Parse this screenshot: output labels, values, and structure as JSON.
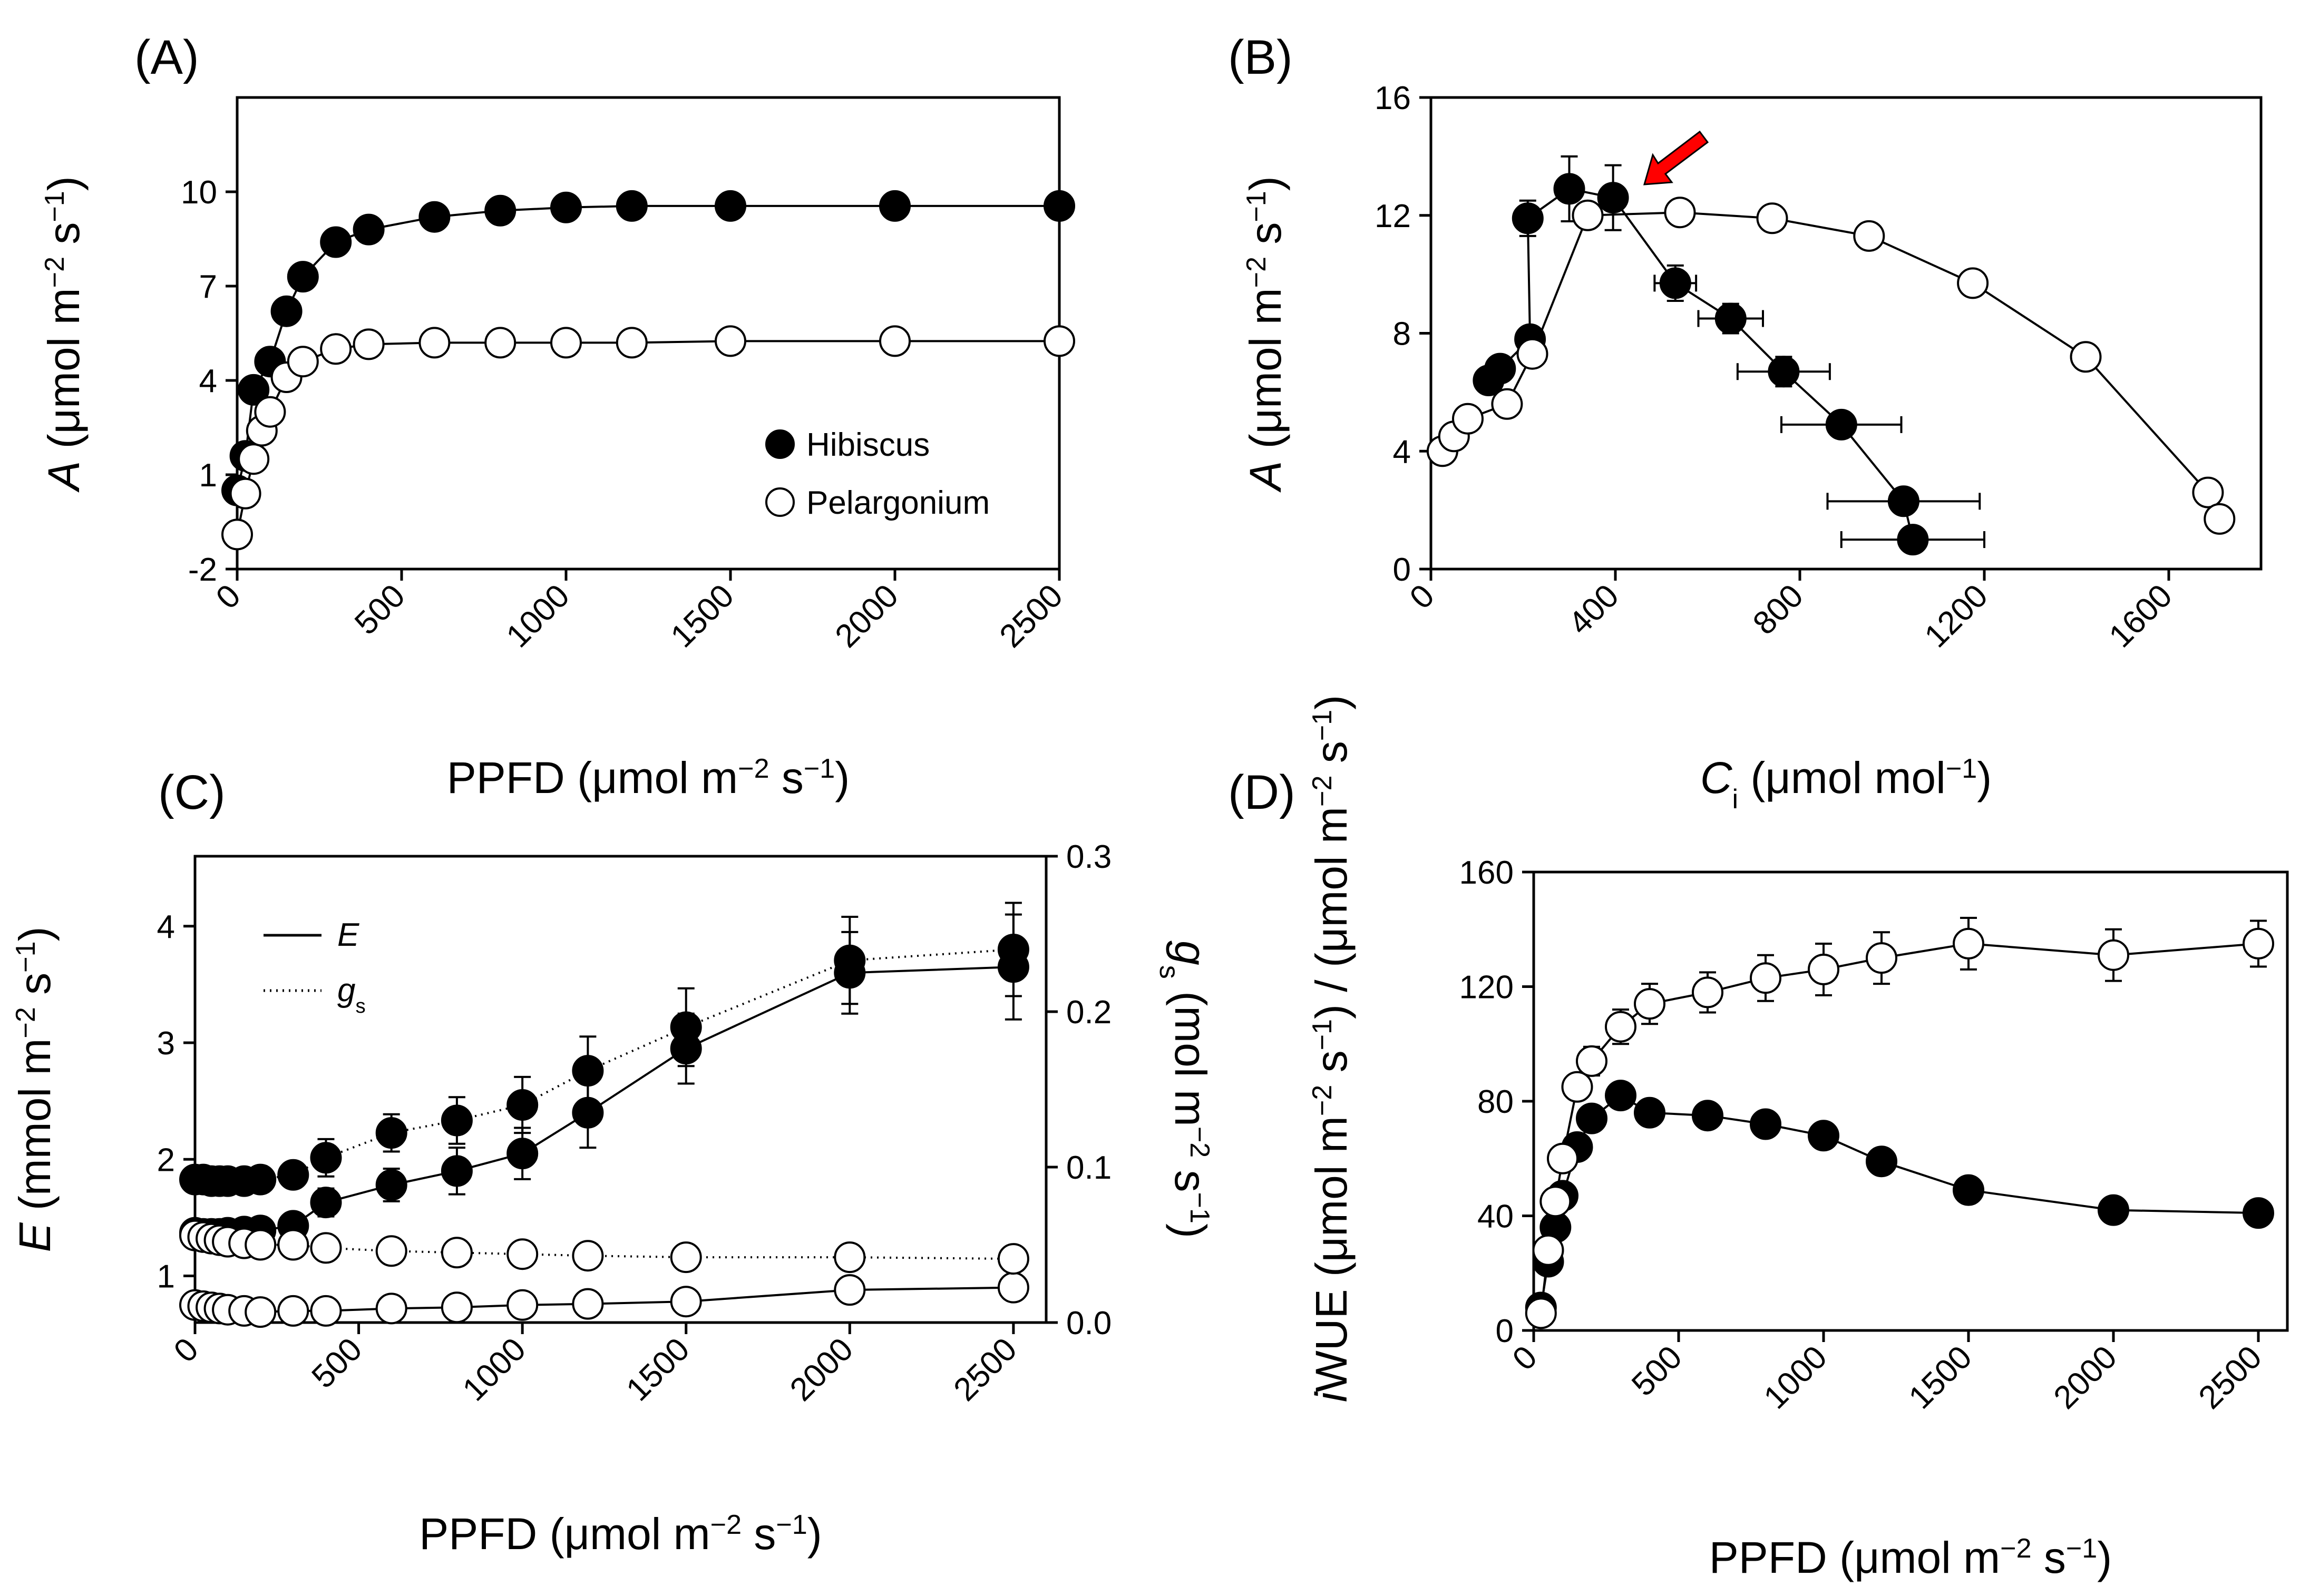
{
  "colors": {
    "filled": "#000000",
    "open": "#ffffff",
    "arrow": "#ff0000",
    "line": "#000000"
  },
  "legend_ab": {
    "hibiscus": "Hibiscus",
    "pelargonium": "Pelargonium"
  },
  "chart_data": [
    {
      "id": "A",
      "panel_label": "(A)",
      "type": "line",
      "xlabel": "PPFD (μmol m⁻² s⁻¹)",
      "ylabel": "A (μmol m⁻² s⁻¹)",
      "xlim": [
        0,
        2500
      ],
      "ylim": [
        -2,
        13
      ],
      "xticks": [
        0,
        500,
        1000,
        1500,
        2000,
        2500
      ],
      "yticks": [
        -2,
        1,
        4,
        7,
        10
      ],
      "series": [
        {
          "name": "Hibiscus",
          "marker": "filled",
          "x": [
            0,
            25,
            50,
            100,
            150,
            200,
            300,
            400,
            600,
            800,
            1000,
            1200,
            1500,
            2000,
            2500
          ],
          "y": [
            0.5,
            1.6,
            3.7,
            4.6,
            6.2,
            7.3,
            8.4,
            8.8,
            9.2,
            9.4,
            9.5,
            9.55,
            9.55,
            9.55,
            9.55
          ]
        },
        {
          "name": "Pelargonium",
          "marker": "open",
          "x": [
            0,
            25,
            50,
            75,
            100,
            150,
            200,
            300,
            400,
            600,
            800,
            1000,
            1200,
            1500,
            2000,
            2500
          ],
          "y": [
            -0.9,
            0.4,
            1.5,
            2.4,
            3.0,
            4.1,
            4.6,
            5.0,
            5.15,
            5.2,
            5.2,
            5.2,
            5.2,
            5.25,
            5.25,
            5.25
          ]
        }
      ]
    },
    {
      "id": "B",
      "panel_label": "(B)",
      "type": "line",
      "xlabel": "Ci (μmol mol⁻¹)",
      "ylabel": "A (μmol m⁻² s⁻¹)",
      "xlim": [
        0,
        1800
      ],
      "ylim": [
        0,
        16
      ],
      "xticks": [
        0,
        400,
        800,
        1200,
        1600
      ],
      "yticks": [
        0,
        4,
        8,
        12,
        16
      ],
      "annotation": "red arrow pointing to the transition point near Ci 480, A 12.7",
      "series": [
        {
          "name": "Hibiscus",
          "marker": "filled",
          "x": [
            125,
            150,
            215,
            210,
            300,
            395,
            530,
            650,
            765,
            890,
            1025,
            1045
          ],
          "y": [
            6.4,
            6.8,
            7.8,
            11.9,
            12.9,
            12.6,
            9.7,
            8.5,
            6.7,
            4.9,
            2.3,
            1.0
          ],
          "xerr": [
            0,
            0,
            0,
            0,
            0,
            0,
            45,
            70,
            100,
            130,
            165,
            155
          ],
          "yerr": [
            0,
            0,
            0,
            0.6,
            1.1,
            1.1,
            0.6,
            0.5,
            0.5,
            0.4,
            0.4,
            0.3
          ]
        },
        {
          "name": "Pelargonium",
          "marker": "open",
          "x": [
            25,
            50,
            80,
            165,
            220,
            340,
            540,
            740,
            950,
            1175,
            1420,
            1685,
            1710
          ],
          "y": [
            4.0,
            4.5,
            5.1,
            5.6,
            7.3,
            12.0,
            12.1,
            11.9,
            11.3,
            9.7,
            7.2,
            2.6,
            1.7
          ]
        }
      ]
    },
    {
      "id": "C",
      "panel_label": "(C)",
      "type": "line",
      "xlabel": "PPFD (μmol m⁻² s⁻¹)",
      "ylabel": "E (mmol m⁻² s⁻¹)",
      "y2label": "gs (mol m⁻² s⁻¹)",
      "xlim": [
        0,
        2600
      ],
      "ylim": [
        0.6,
        4.6
      ],
      "y2lim": [
        0,
        0.3
      ],
      "xticks": [
        0,
        500,
        1000,
        1500,
        2000,
        2500
      ],
      "yticks": [
        1,
        2,
        3,
        4
      ],
      "y2ticks": [
        0.0,
        0.1,
        0.2,
        0.3
      ],
      "y2tick_labels": [
        "0.0",
        "0.1",
        "0.2",
        "0.3"
      ],
      "legend": {
        "E": "E",
        "gs": "gs"
      },
      "series": [
        {
          "name": "Hibiscus E",
          "marker": "filled",
          "line": "solid",
          "axis": "left",
          "x": [
            0,
            25,
            50,
            75,
            100,
            150,
            200,
            300,
            400,
            600,
            800,
            1000,
            1200,
            1500,
            2000,
            2500
          ],
          "y": [
            1.37,
            1.36,
            1.36,
            1.36,
            1.37,
            1.38,
            1.39,
            1.43,
            1.63,
            1.78,
            1.9,
            2.05,
            2.4,
            2.95,
            3.6,
            3.65
          ],
          "yerr": [
            0,
            0,
            0,
            0,
            0,
            0,
            0,
            0,
            0.12,
            0.14,
            0.2,
            0.22,
            0.3,
            0.3,
            0.35,
            0.45
          ]
        },
        {
          "name": "Hibiscus gs",
          "marker": "filled",
          "line": "dotted",
          "axis": "right",
          "x": [
            0,
            25,
            50,
            75,
            100,
            150,
            200,
            300,
            400,
            600,
            800,
            1000,
            1200,
            1500,
            2000,
            2500
          ],
          "y": [
            0.092,
            0.092,
            0.091,
            0.091,
            0.091,
            0.091,
            0.092,
            0.095,
            0.106,
            0.122,
            0.13,
            0.14,
            0.162,
            0.19,
            0.233,
            0.24
          ],
          "yerr": [
            0,
            0,
            0,
            0,
            0,
            0,
            0,
            0,
            0.012,
            0.012,
            0.015,
            0.018,
            0.022,
            0.025,
            0.028,
            0.03
          ]
        },
        {
          "name": "Pelargonium E",
          "marker": "open",
          "line": "solid",
          "axis": "left",
          "x": [
            0,
            25,
            50,
            75,
            100,
            150,
            200,
            300,
            400,
            600,
            800,
            1000,
            1200,
            1500,
            2000,
            2500
          ],
          "y": [
            0.75,
            0.74,
            0.73,
            0.72,
            0.71,
            0.7,
            0.69,
            0.7,
            0.7,
            0.72,
            0.73,
            0.75,
            0.76,
            0.78,
            0.88,
            0.9
          ]
        },
        {
          "name": "Pelargonium gs",
          "marker": "open",
          "line": "dotted",
          "axis": "right",
          "x": [
            0,
            25,
            50,
            75,
            100,
            150,
            200,
            300,
            400,
            600,
            800,
            1000,
            1200,
            1500,
            2000,
            2500
          ],
          "y": [
            0.056,
            0.055,
            0.054,
            0.053,
            0.052,
            0.051,
            0.05,
            0.05,
            0.048,
            0.046,
            0.045,
            0.044,
            0.043,
            0.042,
            0.042,
            0.041
          ]
        }
      ]
    },
    {
      "id": "D",
      "panel_label": "(D)",
      "type": "line",
      "xlabel": "PPFD (μmol m⁻² s⁻¹)",
      "ylabel": "iWUE",
      "ylabel_line2": "(μmol m⁻² s⁻¹) / (μmol m⁻² s⁻¹)",
      "xlim": [
        0,
        2600
      ],
      "ylim": [
        0,
        160
      ],
      "xticks": [
        0,
        500,
        1000,
        1500,
        2000,
        2500
      ],
      "yticks": [
        0,
        40,
        80,
        120,
        160
      ],
      "series": [
        {
          "name": "Hibiscus",
          "marker": "filled",
          "x": [
            25,
            50,
            75,
            100,
            150,
            200,
            300,
            400,
            600,
            800,
            1000,
            1200,
            1500,
            2000,
            2500
          ],
          "y": [
            8,
            24,
            36,
            47,
            64,
            74,
            82,
            76,
            75,
            72,
            68,
            59,
            49,
            42,
            41
          ]
        },
        {
          "name": "Pelargonium",
          "marker": "open",
          "x": [
            25,
            50,
            75,
            100,
            150,
            200,
            300,
            400,
            600,
            800,
            1000,
            1200,
            1500,
            2000,
            2500
          ],
          "y": [
            6,
            28,
            45,
            60,
            85,
            94,
            106,
            114,
            118,
            123,
            126,
            130,
            135,
            131,
            135
          ],
          "yerr": [
            0,
            0,
            0,
            0,
            4,
            5,
            6,
            7,
            7,
            8,
            9,
            9,
            9,
            9,
            8
          ]
        }
      ]
    }
  ]
}
